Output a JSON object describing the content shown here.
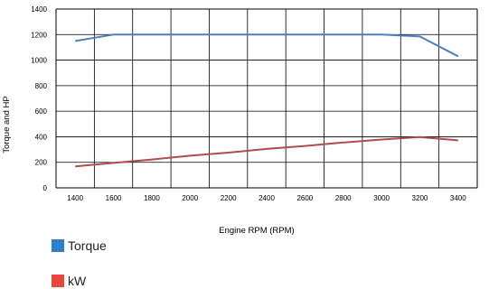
{
  "chart_data": {
    "type": "line",
    "xlabel": "Engine RPM (RPM)",
    "ylabel": "Torque and HP",
    "xlim": [
      1300,
      3500
    ],
    "ylim": [
      0,
      1400
    ],
    "xticks": [
      "1400",
      "1600",
      "1800",
      "2000",
      "2200",
      "2400",
      "2600",
      "2800",
      "3000",
      "3200",
      "3400"
    ],
    "yticks": [
      "0",
      "200",
      "400",
      "600",
      "800",
      "1000",
      "1200",
      "1400"
    ],
    "grid": true,
    "legend_position": "bottom-left",
    "series": [
      {
        "name": "Torque",
        "color": "#4e7fbf",
        "x": [
          1400,
          1600,
          1800,
          2000,
          2200,
          2400,
          2600,
          2800,
          3000,
          3200,
          3400
        ],
        "values": [
          1150,
          1200,
          1200,
          1200,
          1200,
          1200,
          1200,
          1200,
          1200,
          1185,
          1030
        ]
      },
      {
        "name": "kW",
        "color": "#b24a4f",
        "x": [
          1400,
          1600,
          1800,
          2000,
          2200,
          2400,
          2600,
          2800,
          3000,
          3200,
          3400
        ],
        "values": [
          168,
          195,
          222,
          252,
          276,
          305,
          328,
          355,
          378,
          398,
          372
        ]
      }
    ]
  },
  "legend": {
    "torque_label": "Torque",
    "torque_color": "#2f7ec8",
    "kw_label": "kW",
    "kw_color": "#e8453c"
  }
}
